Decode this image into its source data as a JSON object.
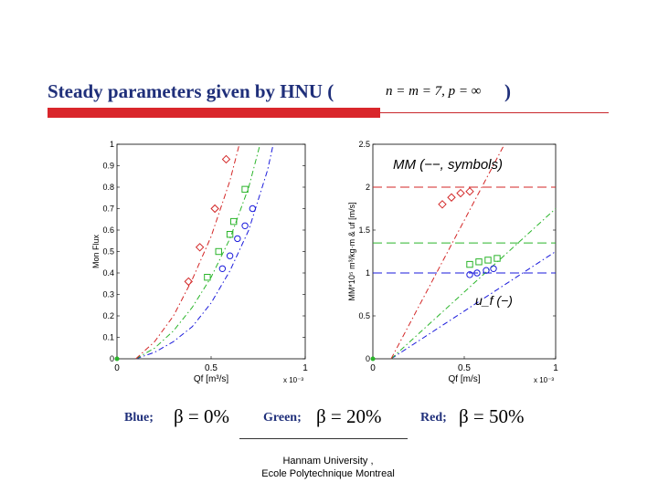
{
  "slide": {
    "title": "Steady parameters given by HNU (",
    "title_close": ")",
    "equation": "n = m = 7, p = ∞",
    "legend": [
      {
        "label": "Blue;",
        "equation": "β = 0%",
        "color": "#1f2f7a"
      },
      {
        "label": "Green;",
        "equation": "β = 20%",
        "color": "#1f2f7a"
      },
      {
        "label": "Red;",
        "equation": "β = 50%",
        "color": "#1f2f7a"
      }
    ],
    "footer_line1": "Hannam University ,",
    "footer_line2": "Ecole Polytechnique Montreal",
    "accent_color": "#d9262b"
  },
  "chart_data": [
    {
      "type": "line",
      "xlabel": "Qf [m³/s]",
      "x_exponent": "x 10⁻³",
      "ylabel": "Mon Flux",
      "xlim": [
        0,
        1
      ],
      "ylim": [
        0,
        1
      ],
      "xticks": [
        "0",
        "0.5",
        "1"
      ],
      "yticks": [
        "0",
        "0.1",
        "0.2",
        "0.3",
        "0.4",
        "0.5",
        "0.6",
        "0.7",
        "0.8",
        "0.9",
        "1"
      ],
      "grid": false,
      "series": [
        {
          "color": "#1a1adb",
          "style": "dash-dot",
          "x": [
            0.1,
            0.2,
            0.3,
            0.4,
            0.5,
            0.6,
            0.7,
            0.8,
            0.83
          ],
          "y": [
            0.0,
            0.03,
            0.08,
            0.15,
            0.26,
            0.41,
            0.6,
            0.88,
            1.0
          ],
          "markers": {
            "shape": "circle",
            "x": [
              0.56,
              0.6,
              0.64,
              0.68,
              0.72
            ],
            "y": [
              0.42,
              0.48,
              0.56,
              0.62,
              0.7
            ]
          }
        },
        {
          "color": "#2ab52a",
          "style": "dash-dot",
          "x": [
            0.1,
            0.2,
            0.3,
            0.4,
            0.5,
            0.6,
            0.7,
            0.76
          ],
          "y": [
            0.0,
            0.05,
            0.13,
            0.24,
            0.38,
            0.56,
            0.8,
            1.0
          ],
          "markers": {
            "shape": "square",
            "x": [
              0.48,
              0.54,
              0.6,
              0.62,
              0.68
            ],
            "y": [
              0.38,
              0.5,
              0.58,
              0.64,
              0.79
            ]
          }
        },
        {
          "color": "#d32626",
          "style": "dash-dot",
          "x": [
            0.1,
            0.2,
            0.3,
            0.4,
            0.5,
            0.6,
            0.65
          ],
          "y": [
            0.0,
            0.08,
            0.2,
            0.37,
            0.57,
            0.83,
            1.0
          ],
          "markers": {
            "shape": "diamond",
            "x": [
              0.38,
              0.44,
              0.52,
              0.58
            ],
            "y": [
              0.36,
              0.52,
              0.7,
              0.93
            ]
          }
        }
      ]
    },
    {
      "type": "line",
      "xlabel": "Qf [m/s]",
      "x_exponent": "x 10⁻³",
      "ylabel": "MM*10⁵ m³/kg·m  & uf [m/s]",
      "annotation_top": "MM (−−, symbols)",
      "annotation_bottom": "u_f (−)",
      "xlim": [
        0,
        1
      ],
      "ylim": [
        0,
        2.5
      ],
      "xticks": [
        "0",
        "0.5",
        "1"
      ],
      "yticks": [
        "0",
        "0.5",
        "1",
        "1.5",
        "2",
        "2.5"
      ],
      "grid": false,
      "series": [
        {
          "color": "#1a1adb",
          "style": "dashed",
          "x": [
            0,
            1
          ],
          "y": [
            1.0,
            1.0
          ]
        },
        {
          "color": "#2ab52a",
          "style": "dashed",
          "x": [
            0,
            1
          ],
          "y": [
            1.35,
            1.35
          ]
        },
        {
          "color": "#d32626",
          "style": "dashed",
          "x": [
            0,
            1
          ],
          "y": [
            2.0,
            2.0
          ]
        },
        {
          "color": "#1a1adb",
          "style": "dash-dot",
          "x": [
            0.1,
            1
          ],
          "y": [
            0.0,
            1.25
          ]
        },
        {
          "color": "#2ab52a",
          "style": "dash-dot",
          "x": [
            0.1,
            1
          ],
          "y": [
            0.0,
            1.75
          ]
        },
        {
          "color": "#d32626",
          "style": "dash-dot",
          "x": [
            0.1,
            0.72
          ],
          "y": [
            0.0,
            2.5
          ]
        },
        {
          "color": "#1a1adb",
          "style": "markers",
          "markers": {
            "shape": "circle",
            "x": [
              0.53,
              0.57,
              0.62,
              0.66
            ],
            "y": [
              0.98,
              1.0,
              1.03,
              1.05
            ]
          }
        },
        {
          "color": "#2ab52a",
          "style": "markers",
          "markers": {
            "shape": "square",
            "x": [
              0.53,
              0.58,
              0.63,
              0.68
            ],
            "y": [
              1.1,
              1.13,
              1.15,
              1.17
            ]
          }
        },
        {
          "color": "#d32626",
          "style": "markers",
          "markers": {
            "shape": "diamond",
            "x": [
              0.38,
              0.43,
              0.48,
              0.53
            ],
            "y": [
              1.8,
              1.88,
              1.93,
              1.95
            ]
          }
        }
      ]
    }
  ]
}
